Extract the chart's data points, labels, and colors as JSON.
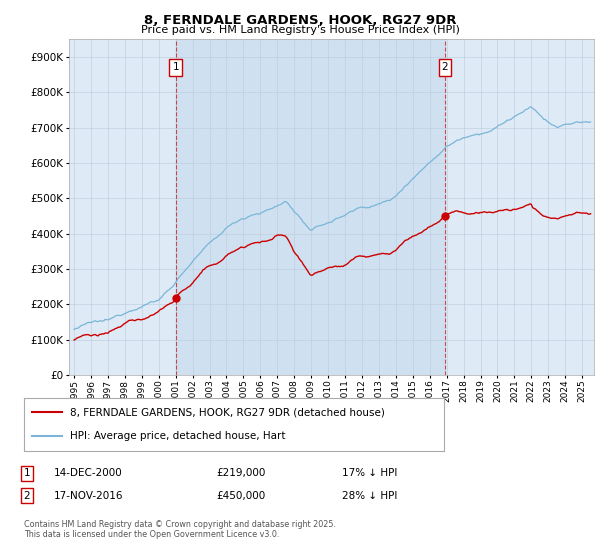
{
  "title": "8, FERNDALE GARDENS, HOOK, RG27 9DR",
  "subtitle": "Price paid vs. HM Land Registry's House Price Index (HPI)",
  "hpi_label": "HPI: Average price, detached house, Hart",
  "property_label": "8, FERNDALE GARDENS, HOOK, RG27 9DR (detached house)",
  "hpi_color": "#7ab5d8",
  "property_color": "#cc0000",
  "highlight_color": "#d8e8f5",
  "sale1_date_num": 2001.0,
  "sale1_label": "1",
  "sale1_date_str": "14-DEC-2000",
  "sale1_price": 219000,
  "sale1_hpi_pct": "17% ↓ HPI",
  "sale2_date_num": 2016.9,
  "sale2_label": "2",
  "sale2_date_str": "17-NOV-2016",
  "sale2_price": 450000,
  "sale2_hpi_pct": "28% ↓ HPI",
  "ylim_min": 0,
  "ylim_max": 950000,
  "xmin": 1994.7,
  "xmax": 2025.7,
  "background_color": "#ffffff",
  "plot_bg_color": "#deeaf5",
  "grid_color": "#c0cfe0",
  "footnote": "Contains HM Land Registry data © Crown copyright and database right 2025.\nThis data is licensed under the Open Government Licence v3.0."
}
